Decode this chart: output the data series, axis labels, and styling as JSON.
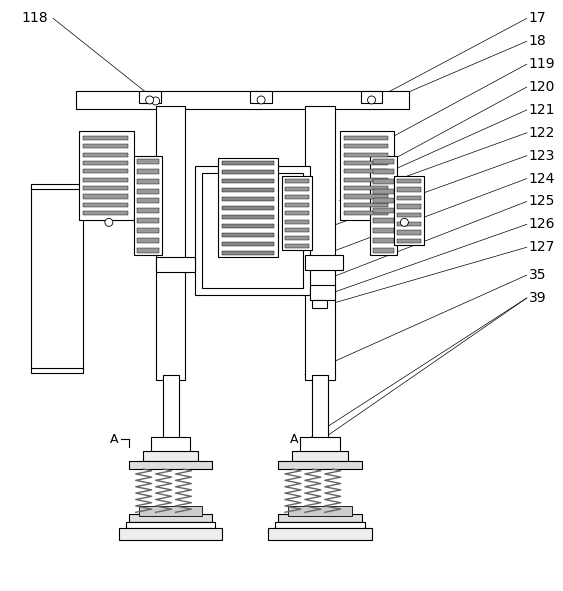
{
  "fig_width": 5.63,
  "fig_height": 5.91,
  "dpi": 100,
  "bg_color": "#ffffff",
  "line_color": "#000000",
  "gray_color": "#888888",
  "dark_gray": "#555555",
  "light_gray": "#cccccc"
}
